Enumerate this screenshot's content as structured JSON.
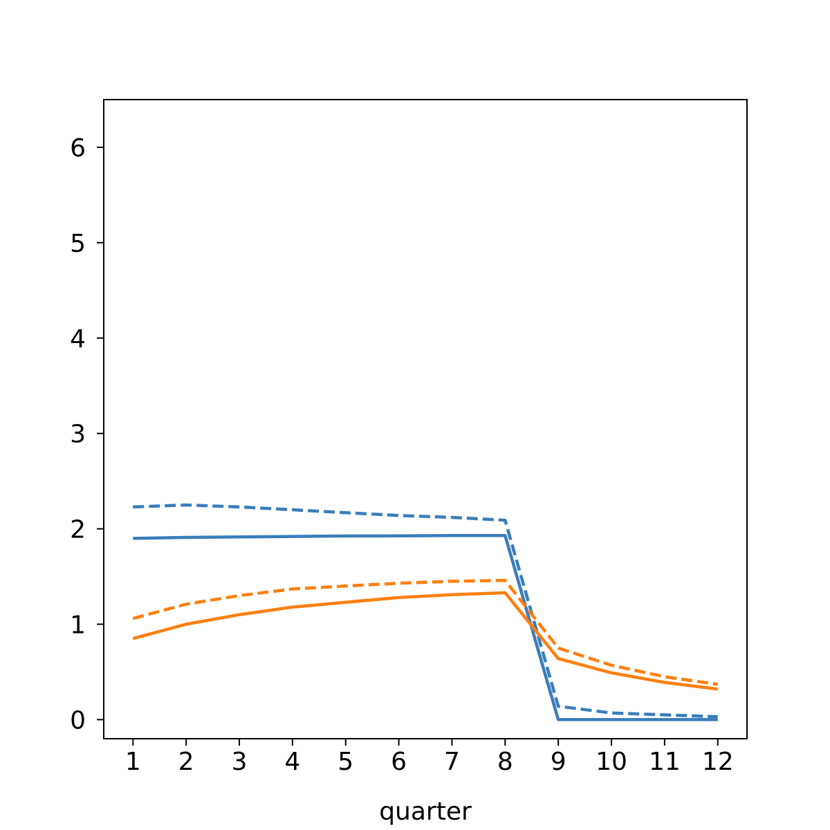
{
  "chart_data": {
    "type": "line",
    "xlabel": "quarter",
    "ylabel": "",
    "title": "",
    "xlim": [
      0.45,
      12.55
    ],
    "ylim": [
      -0.2,
      6.5
    ],
    "grid": false,
    "x": [
      1,
      2,
      3,
      4,
      5,
      6,
      7,
      8,
      9,
      10,
      11,
      12
    ],
    "xticks": [
      "1",
      "2",
      "3",
      "4",
      "5",
      "6",
      "7",
      "8",
      "9",
      "10",
      "11",
      "12"
    ],
    "yticks": [
      "0",
      "1",
      "2",
      "3",
      "4",
      "5",
      "6"
    ],
    "series": [
      {
        "color": "#3a7dba",
        "dash": false,
        "values": [
          1.9,
          1.91,
          1.915,
          1.92,
          1.925,
          1.927,
          1.93,
          1.93,
          0.0,
          0.0,
          0.0,
          0.0
        ]
      },
      {
        "color": "#3a7dba",
        "dash": true,
        "values": [
          2.23,
          2.25,
          2.23,
          2.2,
          2.17,
          2.14,
          2.12,
          2.09,
          0.14,
          0.07,
          0.05,
          0.03
        ]
      },
      {
        "color": "#ff7f0e",
        "dash": false,
        "values": [
          0.85,
          1.0,
          1.1,
          1.18,
          1.23,
          1.28,
          1.31,
          1.33,
          0.64,
          0.49,
          0.39,
          0.32
        ]
      },
      {
        "color": "#ff7f0e",
        "dash": true,
        "values": [
          1.06,
          1.21,
          1.3,
          1.37,
          1.4,
          1.43,
          1.45,
          1.46,
          0.75,
          0.57,
          0.45,
          0.37
        ]
      }
    ]
  }
}
